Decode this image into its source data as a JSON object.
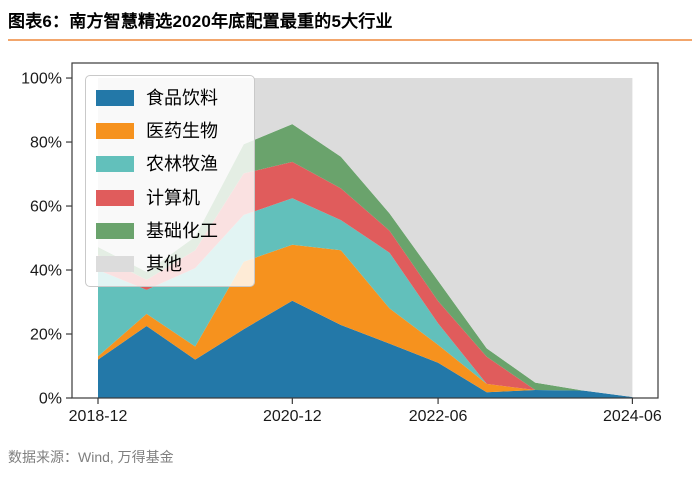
{
  "header": {
    "title": "图表6：南方智慧精选2020年底配置最重的5大行业"
  },
  "footer": {
    "source": "数据来源：Wind, 万得基金"
  },
  "accent_colors": {
    "title_rule": "#f2a66c",
    "source_text": "#7f7f7f",
    "axis": "#3a3a3a",
    "tick_text": "#1a1a1a"
  },
  "chart_data": {
    "type": "area",
    "stacked": true,
    "title": "图表6：南方智慧精选2020年底配置最重的5大行业",
    "xlabel": "",
    "ylabel": "",
    "grid": false,
    "legend_position": "upper-left",
    "ylim": [
      0,
      104.7
    ],
    "x": [
      "2018-12",
      "2019-06",
      "2019-12",
      "2020-06",
      "2020-12",
      "2021-06",
      "2021-12",
      "2022-06",
      "2022-12",
      "2023-06",
      "2023-12",
      "2024-06"
    ],
    "x_months": [
      0,
      6,
      12,
      18,
      24,
      30,
      36,
      42,
      48,
      54,
      60,
      66
    ],
    "series": [
      {
        "key": "food-beverage",
        "name": "食品饮料",
        "color": "#2378a8",
        "values": [
          12.0,
          22.5,
          12.0,
          21.5,
          30.4,
          22.8,
          17.0,
          11.0,
          1.8,
          2.5,
          2.3,
          0.3
        ]
      },
      {
        "key": "pharma-bio",
        "name": "医药生物",
        "color": "#f6921e",
        "values": [
          1.0,
          3.8,
          4.1,
          21.1,
          17.5,
          23.4,
          11.0,
          5.6,
          2.6,
          0.0,
          0.0,
          0.0
        ]
      },
      {
        "key": "agriculture",
        "name": "农林牧渔",
        "color": "#62c0bb",
        "values": [
          27.0,
          7.5,
          24.5,
          14.6,
          14.5,
          9.4,
          17.4,
          6.7,
          0.0,
          0.0,
          0.0,
          0.0
        ]
      },
      {
        "key": "computer",
        "name": "计算机",
        "color": "#e05c5c",
        "values": [
          4.7,
          3.1,
          5.6,
          13.0,
          11.4,
          9.9,
          6.9,
          7.0,
          8.5,
          0.0,
          0.0,
          0.0
        ]
      },
      {
        "key": "basic-chemicals",
        "name": "基础化工",
        "color": "#6aa36c",
        "values": [
          2.5,
          2.5,
          4.2,
          9.1,
          11.8,
          9.9,
          5.4,
          6.3,
          2.6,
          2.3,
          0.0,
          0.0
        ]
      },
      {
        "key": "others",
        "name": "其他",
        "color": "#dcdcdc",
        "fill_to_top": true,
        "values": [
          52.8,
          60.6,
          49.6,
          20.7,
          14.4,
          24.6,
          42.3,
          63.4,
          84.5,
          95.2,
          97.7,
          99.7
        ]
      }
    ],
    "x_ticks": [
      {
        "label": "2018-12",
        "month": 0
      },
      {
        "label": "2020-12",
        "month": 24
      },
      {
        "label": "2022-06",
        "month": 42
      },
      {
        "label": "2024-06",
        "month": 66
      }
    ],
    "y_ticks": [
      {
        "label": "0%",
        "value": 0
      },
      {
        "label": "20%",
        "value": 20
      },
      {
        "label": "40%",
        "value": 40
      },
      {
        "label": "60%",
        "value": 60
      },
      {
        "label": "80%",
        "value": 80
      },
      {
        "label": "100%",
        "value": 100
      }
    ]
  }
}
